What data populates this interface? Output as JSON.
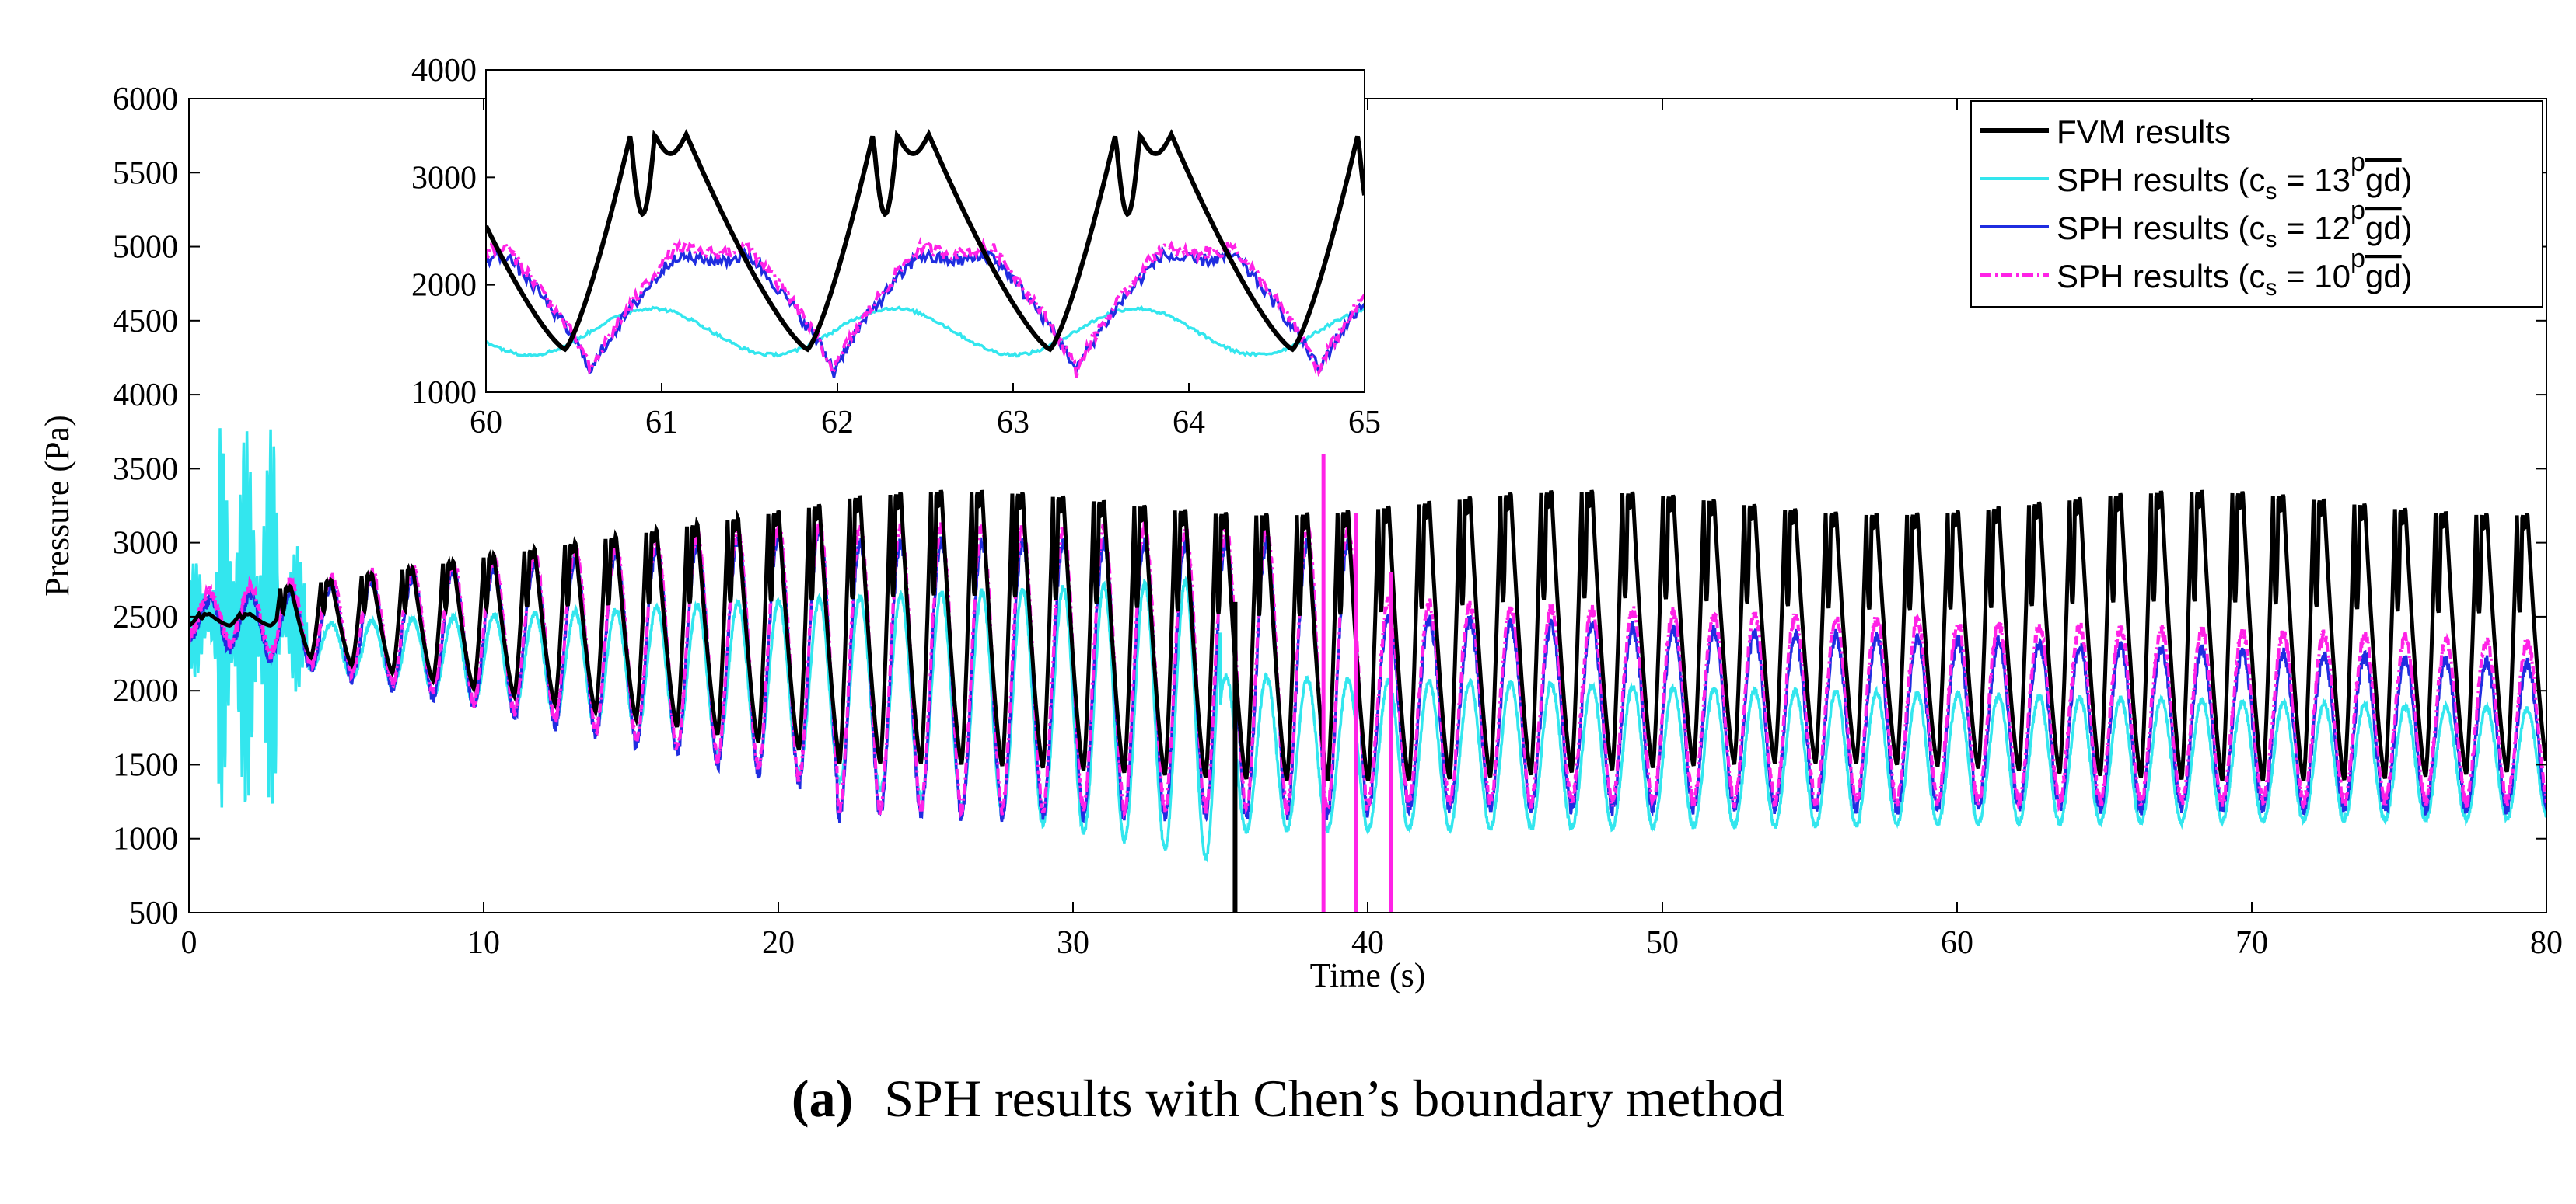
{
  "chart_data": {
    "type": "line",
    "main": {
      "xlabel": "Time (s)",
      "ylabel": "Pressure (Pa)",
      "xlim": [
        0,
        80
      ],
      "ylim": [
        500,
        6000
      ],
      "xticks": [
        "0",
        "10",
        "20",
        "30",
        "40",
        "50",
        "60",
        "70",
        "80"
      ],
      "yticks": [
        "500",
        "1000",
        "1500",
        "2000",
        "2500",
        "3000",
        "3500",
        "4000",
        "4500",
        "5000",
        "5500",
        "6000"
      ],
      "description_of_series": {
        "FVM results": {
          "initial": 2480,
          "oscillation_period_s": 1.38,
          "peak_max_Pa": [
            2650,
            3400
          ],
          "trough_min_Pa": [
            2350,
            1350
          ]
        },
        "SPH results (c_s = 13 sqrt(gd))": {
          "initial_burst_0_4s_range": [
            1200,
            4050
          ],
          "peak_max_Pa": [
            2600,
            1950
          ],
          "trough_min_Pa": [
            2200,
            1100
          ]
        },
        "SPH results (c_s = 12 sqrt(gd))": {
          "peak_max_Pa": [
            2600,
            2100
          ],
          "trough_min_Pa": [
            2300,
            1200
          ]
        },
        "SPH results (c_s = 10 sqrt(gd))": {
          "peak_max_Pa": [
            2650,
            2300
          ],
          "trough_min_Pa": [
            2300,
            1250
          ]
        }
      }
    },
    "inset": {
      "xlim": [
        60,
        65
      ],
      "ylim": [
        1000,
        4000
      ],
      "xticks": [
        "60",
        "61",
        "62",
        "63",
        "64",
        "65"
      ],
      "yticks": [
        "1000",
        "2000",
        "3000",
        "4000"
      ]
    },
    "legend": {
      "position": "top-right",
      "entries": [
        {
          "label": "FVM results",
          "color": "#000000",
          "style": "solid"
        },
        {
          "label": "SPH results (",
          "cs": "c",
          "sub": "s",
          "eq": " = 13",
          "sqrt": "gd",
          "close": ")",
          "color": "#33e6ee",
          "style": "solid"
        },
        {
          "label": "SPH results (",
          "cs": "c",
          "sub": "s",
          "eq": " = 12",
          "sqrt": "gd",
          "close": ")",
          "color": "#1f2de0",
          "style": "solid"
        },
        {
          "label": "SPH results (",
          "cs": "c",
          "sub": "s",
          "eq": " = 10",
          "sqrt": "gd",
          "close": ")",
          "color": "#ff22e6",
          "style": "dashdot"
        }
      ]
    },
    "colors": {
      "fvm": "#000000",
      "sph13": "#33e6ee",
      "sph12": "#1f2de0",
      "sph10": "#ff22e6"
    }
  },
  "caption": {
    "label": "(a)",
    "text": "SPH results with Chen’s boundary method"
  }
}
